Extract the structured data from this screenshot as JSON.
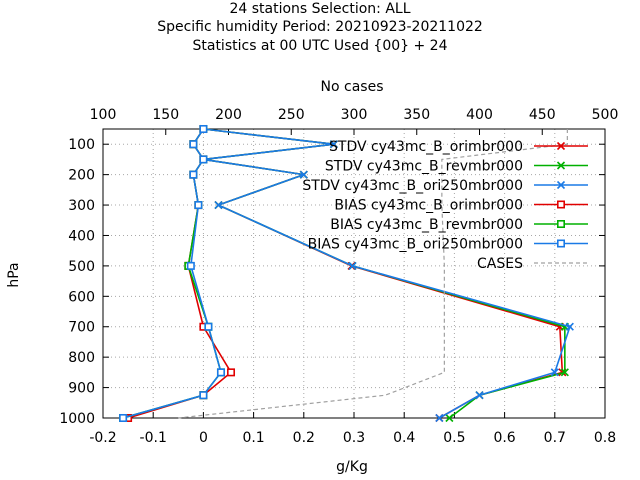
{
  "chart_data": {
    "type": "line",
    "title_lines": [
      "24 stations Selection: ALL",
      "Specific humidity  Period: 20210923-20211022",
      "Statistics at 00 UTC  Used {00} + 24"
    ],
    "xlabel": "g/Kg",
    "ylabel": "hPa",
    "x2label": "No cases",
    "xlim": [
      -0.2,
      0.8
    ],
    "x2lim": [
      100,
      500
    ],
    "ylim": [
      1000,
      50
    ],
    "xticks": [
      "-0.2",
      "-0.1",
      "0",
      "0.1",
      "0.2",
      "0.3",
      "0.4",
      "0.5",
      "0.6",
      "0.7",
      "0.8"
    ],
    "x2ticks": [
      "100",
      "150",
      "200",
      "250",
      "300",
      "350",
      "400",
      "450",
      "500"
    ],
    "yticks": [
      "100",
      "200",
      "300",
      "400",
      "500",
      "600",
      "700",
      "800",
      "900",
      "1000"
    ],
    "grid": true,
    "legend_position": "top-right",
    "series": [
      {
        "name": "STDV cy43mc_B_orimbr000",
        "color": "#e00000",
        "marker": "x",
        "points": [
          [
            0.0,
            50
          ],
          [
            0.26,
            100
          ],
          [
            0.0,
            150
          ],
          [
            0.2,
            200
          ],
          [
            0.03,
            300
          ],
          [
            0.295,
            500
          ],
          [
            0.71,
            700
          ],
          [
            0.715,
            850
          ],
          [
            0.55,
            925
          ],
          [
            0.47,
            1000
          ]
        ]
      },
      {
        "name": "STDV cy43mc_B_revmbr000",
        "color": "#00b000",
        "marker": "x",
        "points": [
          [
            0.0,
            50
          ],
          [
            0.26,
            100
          ],
          [
            0.0,
            150
          ],
          [
            0.2,
            200
          ],
          [
            0.03,
            300
          ],
          [
            0.297,
            500
          ],
          [
            0.72,
            700
          ],
          [
            0.72,
            850
          ],
          [
            0.55,
            925
          ],
          [
            0.49,
            1000
          ]
        ]
      },
      {
        "name": "STDV cy43mc_B_ori250mbr000",
        "color": "#1a7ae6",
        "marker": "x",
        "points": [
          [
            0.0,
            50
          ],
          [
            0.26,
            100
          ],
          [
            0.0,
            150
          ],
          [
            0.2,
            200
          ],
          [
            0.03,
            300
          ],
          [
            0.297,
            500
          ],
          [
            0.73,
            700
          ],
          [
            0.7,
            850
          ],
          [
            0.55,
            925
          ],
          [
            0.47,
            1000
          ]
        ]
      },
      {
        "name": "BIAS cy43mc_B_orimbr000",
        "color": "#e00000",
        "marker": "square",
        "points": [
          [
            0.0,
            50
          ],
          [
            -0.02,
            100
          ],
          [
            0.0,
            150
          ],
          [
            -0.02,
            200
          ],
          [
            -0.01,
            300
          ],
          [
            -0.03,
            500
          ],
          [
            0.0,
            700
          ],
          [
            0.055,
            850
          ],
          [
            0.0,
            925
          ],
          [
            -0.15,
            1000
          ]
        ]
      },
      {
        "name": "BIAS cy43mc_B_revmbr000",
        "color": "#00b000",
        "marker": "square",
        "points": [
          [
            0.0,
            50
          ],
          [
            -0.02,
            100
          ],
          [
            0.0,
            150
          ],
          [
            -0.02,
            200
          ],
          [
            -0.01,
            300
          ],
          [
            -0.03,
            500
          ],
          [
            0.01,
            700
          ],
          [
            0.035,
            850
          ],
          [
            0.0,
            925
          ],
          [
            -0.16,
            1000
          ]
        ]
      },
      {
        "name": "BIAS cy43mc_B_ori250mbr000",
        "color": "#1a7ae6",
        "marker": "square",
        "points": [
          [
            0.0,
            50
          ],
          [
            -0.02,
            100
          ],
          [
            0.0,
            150
          ],
          [
            -0.02,
            200
          ],
          [
            -0.01,
            300
          ],
          [
            -0.025,
            500
          ],
          [
            0.01,
            700
          ],
          [
            0.035,
            850
          ],
          [
            0.0,
            925
          ],
          [
            -0.16,
            1000
          ]
        ]
      },
      {
        "name": "CASES",
        "color": "#a0a0a0",
        "marker": "none",
        "dashed": true,
        "axis": "x2",
        "points": [
          [
            470,
            50
          ],
          [
            470,
            100
          ],
          [
            370,
            150
          ],
          [
            370,
            300
          ],
          [
            372,
            500
          ],
          [
            372,
            700
          ],
          [
            372,
            850
          ],
          [
            325,
            925
          ],
          [
            160,
            1000
          ]
        ]
      }
    ]
  }
}
